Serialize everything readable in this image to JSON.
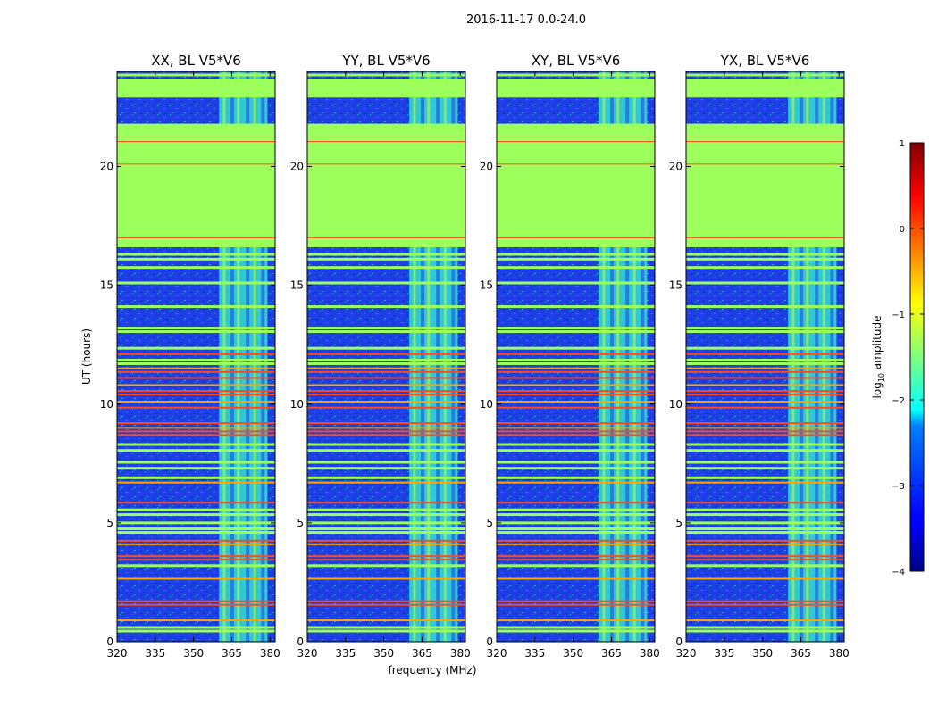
{
  "suptitle": "2016-11-17 0.0-24.0",
  "colorbar": {
    "label": "log",
    "label_sub": "10",
    "label_rest": " amplitude",
    "range": [
      -4,
      1
    ],
    "ticks": [
      "1",
      "0",
      "−1",
      "−2",
      "−3",
      "−4"
    ],
    "tick_values": [
      1,
      0,
      -1,
      -2,
      -3,
      -4
    ]
  },
  "chart_data": [
    {
      "type": "heatmap",
      "title": "XX, BL V5*V6",
      "xlabel": "",
      "ylabel": "UT (hours)",
      "xlim": [
        320,
        382
      ],
      "ylim": [
        0,
        24
      ],
      "xticks": [
        320,
        335,
        350,
        365,
        380
      ],
      "yticks": [
        0,
        5,
        10,
        15,
        20
      ],
      "bright_band_mhz": [
        360,
        379
      ],
      "flagged_hours": [
        [
          16.6,
          21.8
        ],
        [
          22.9,
          23.7
        ]
      ]
    },
    {
      "type": "heatmap",
      "title": "YY, BL V5*V6",
      "xlabel": "frequency (MHz)",
      "ylabel": "",
      "xlim": [
        320,
        382
      ],
      "ylim": [
        0,
        24
      ],
      "xticks": [
        320,
        335,
        350,
        365,
        380
      ],
      "yticks": [
        0,
        5,
        10,
        15,
        20
      ],
      "bright_band_mhz": [
        360,
        379
      ],
      "flagged_hours": [
        [
          16.6,
          21.8
        ],
        [
          22.9,
          23.7
        ]
      ]
    },
    {
      "type": "heatmap",
      "title": "XY, BL V5*V6",
      "xlabel": "",
      "ylabel": "",
      "xlim": [
        320,
        382
      ],
      "ylim": [
        0,
        24
      ],
      "xticks": [
        320,
        335,
        350,
        365,
        380
      ],
      "yticks": [
        0,
        5,
        10,
        15,
        20
      ],
      "bright_band_mhz": [
        360,
        379
      ],
      "flagged_hours": [
        [
          16.6,
          21.8
        ],
        [
          22.9,
          23.7
        ]
      ]
    },
    {
      "type": "heatmap",
      "title": "YX, BL V5*V6",
      "xlabel": "",
      "ylabel": "",
      "xlim": [
        320,
        382
      ],
      "ylim": [
        0,
        24
      ],
      "xticks": [
        320,
        335,
        350,
        365,
        380
      ],
      "yticks": [
        0,
        5,
        10,
        15,
        20
      ],
      "bright_band_mhz": [
        360,
        379
      ],
      "flagged_hours": [
        [
          16.6,
          21.8
        ],
        [
          22.9,
          23.7
        ]
      ]
    }
  ],
  "colors": {
    "background_low": "#1f3fe6",
    "flagged": "#9cff5c",
    "band_cyan": "#33e0d0",
    "rfi_red": "#ff4a1a",
    "rfi_orange": "#ffa500"
  }
}
